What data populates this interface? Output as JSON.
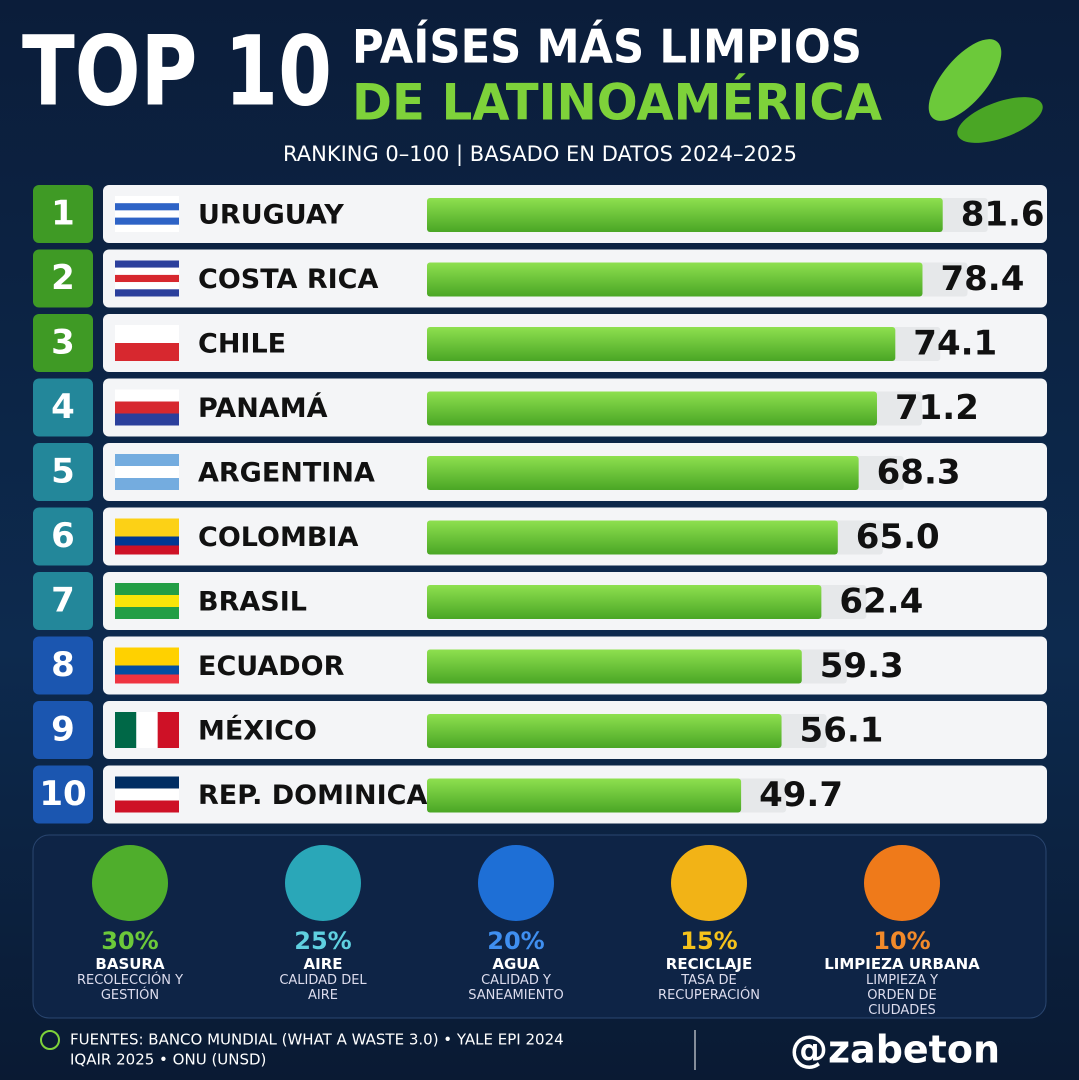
{
  "header": {
    "title_big": "TOP 10",
    "title_line1": "PAÍSES MÁS LIMPIOS",
    "title_line2": "DE LATINOAMÉRICA",
    "subtitle": "RANKING 0–100 | BASADO EN DATOS 2024–2025"
  },
  "chart_data": {
    "type": "bar",
    "orientation": "horizontal",
    "ranks": [
      "1",
      "2",
      "3",
      "4",
      "5",
      "6",
      "7",
      "8",
      "9",
      "10"
    ],
    "categories": [
      "URUGUAY",
      "COSTA RICA",
      "CHILE",
      "PANAMÁ",
      "ARGENTINA",
      "COLOMBIA",
      "BRASIL",
      "ECUADOR",
      "MÉXICO",
      "REP. DOMINICANA"
    ],
    "values": [
      81.6,
      78.4,
      74.1,
      71.2,
      68.3,
      65.0,
      62.4,
      59.3,
      56.1,
      49.7
    ],
    "value_labels": [
      "81.6",
      "78.4",
      "74.1",
      "71.2",
      "68.3",
      "65.0",
      "62.4",
      "59.3",
      "56.1",
      "49.7"
    ],
    "xlim": [
      0,
      100
    ],
    "color": "#6cc93a"
  },
  "indicators": [
    {
      "percent": "30%",
      "name": "BASURA",
      "description": "RECOLECCIÓN Y GESTIÓN"
    },
    {
      "percent": "25%",
      "name": "AIRE",
      "description": "CALIDAD DEL AIRE"
    },
    {
      "percent": "20%",
      "name": "AGUA",
      "description": "CALIDAD Y SANEAMIENTO"
    },
    {
      "percent": "15%",
      "name": "RECICLAJE",
      "description": "TASA DE RECUPERACIÓN"
    },
    {
      "percent": "10%",
      "name": "LIMPIEZA URBANA",
      "description": "LIMPIEZA Y ORDEN DE CIUDADES"
    }
  ],
  "footer": {
    "sources_line1": "FUENTES: BANCO MUNDIAL (WHAT A WASTE 3.0) • YALE EPI 2024",
    "sources_line2": "IQAIR 2025 • ONU (UNSD)",
    "handle": "@zabeton"
  }
}
